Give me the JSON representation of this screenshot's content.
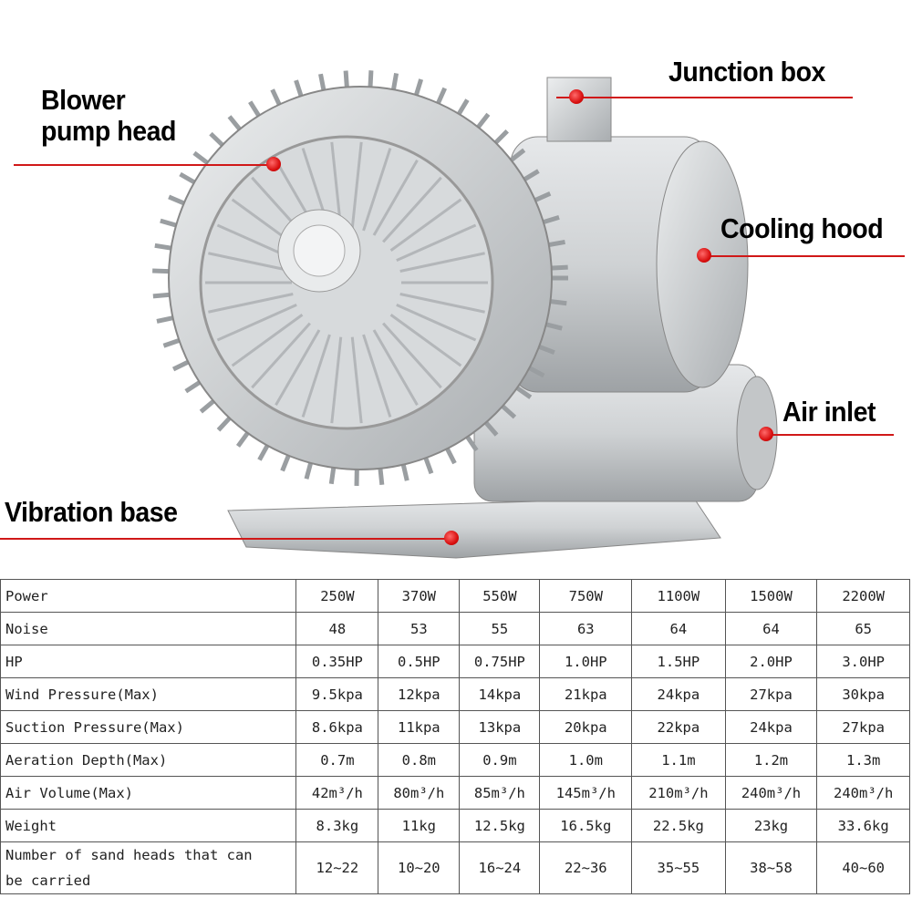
{
  "labels": {
    "pump_head": [
      "Blower",
      "pump head"
    ],
    "junction_box": "Junction box",
    "cooling_hood": "Cooling hood",
    "air_inlet": "Air inlet",
    "vibration_base": "Vibration base"
  },
  "colors": {
    "pointer": "#d01818",
    "body": "#c8cacc"
  },
  "table": {
    "rows": [
      {
        "label": "Power",
        "values": [
          "250W",
          "370W",
          "550W",
          "750W",
          "1100W",
          "1500W",
          "2200W"
        ]
      },
      {
        "label": "Noise",
        "values": [
          "48",
          "53",
          "55",
          "63",
          "64",
          "64",
          "65"
        ]
      },
      {
        "label": "HP",
        "values": [
          "0.35HP",
          "0.5HP",
          "0.75HP",
          "1.0HP",
          "1.5HP",
          "2.0HP",
          "3.0HP"
        ]
      },
      {
        "label": "Wind Pressure(Max)",
        "values": [
          "9.5kpa",
          "12kpa",
          "14kpa",
          "21kpa",
          "24kpa",
          "27kpa",
          "30kpa"
        ]
      },
      {
        "label": "Suction Pressure(Max)",
        "values": [
          "8.6kpa",
          "11kpa",
          "13kpa",
          "20kpa",
          "22kpa",
          "24kpa",
          "27kpa"
        ]
      },
      {
        "label": "Aeration Depth(Max)",
        "values": [
          "0.7m",
          "0.8m",
          "0.9m",
          "1.0m",
          "1.1m",
          "1.2m",
          "1.3m"
        ]
      },
      {
        "label": "Air Volume(Max)",
        "values": [
          "42m³/h",
          "80m³/h",
          "85m³/h",
          "145m³/h",
          "210m³/h",
          "240m³/h",
          "240m³/h"
        ]
      },
      {
        "label": "Weight",
        "values": [
          "8.3kg",
          "11kg",
          "12.5kg",
          "16.5kg",
          "22.5kg",
          "23kg",
          "33.6kg"
        ]
      },
      {
        "label": "Number of sand heads that can be carried",
        "values": [
          "12~22",
          "10~20",
          "16~24",
          "22~36",
          "35~55",
          "38~58",
          "40~60"
        ]
      }
    ]
  }
}
